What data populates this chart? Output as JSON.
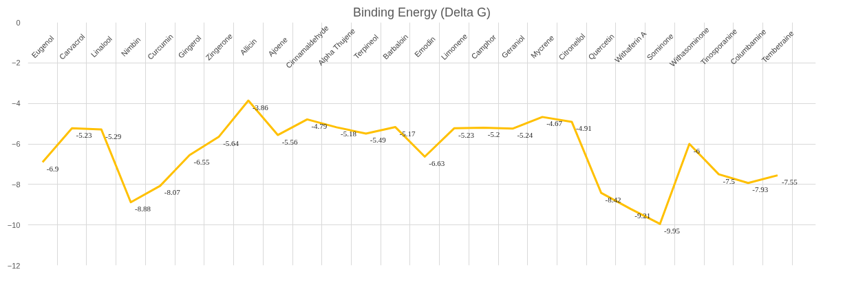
{
  "chart_data": {
    "type": "line",
    "title": "Binding Energy (Delta G)",
    "categories": [
      "Eugenol",
      "Carvacrol",
      "Linalool",
      "Nimbin",
      "Curcumin",
      "Gingerol",
      "Zingerone",
      "Allicin",
      "Ajoene",
      "Cinnamaldehyde",
      "Alpha Thujene",
      "Terpineol",
      "Barbaloin",
      "Emodin",
      "Limonene",
      "Camphor",
      "Geraniol",
      "Mycrene",
      "Citronellol",
      "Quercetin",
      "Withaferin A",
      "Sominone",
      "Withasominone",
      "Tinosporanine",
      "Columbamine",
      "Tembetraine"
    ],
    "series": [
      {
        "color": "#ffc000",
        "values": [
          -6.9,
          -5.23,
          -5.29,
          -8.88,
          -8.07,
          -6.55,
          -5.64,
          -3.86,
          -5.56,
          -4.79,
          -5.18,
          -5.49,
          -5.17,
          -6.63,
          -5.23,
          -5.2,
          -5.24,
          -4.67,
          -4.91,
          -8.42,
          -9.21,
          -9.95,
          -6,
          -7.5,
          -7.93,
          -7.55
        ]
      }
    ],
    "ylim": [
      -12,
      0
    ],
    "yticks": [
      -12,
      -10,
      -8,
      -6,
      -4,
      -2,
      0
    ],
    "grid": true,
    "data_labels": true,
    "marker": "none",
    "line_style": "solid"
  }
}
